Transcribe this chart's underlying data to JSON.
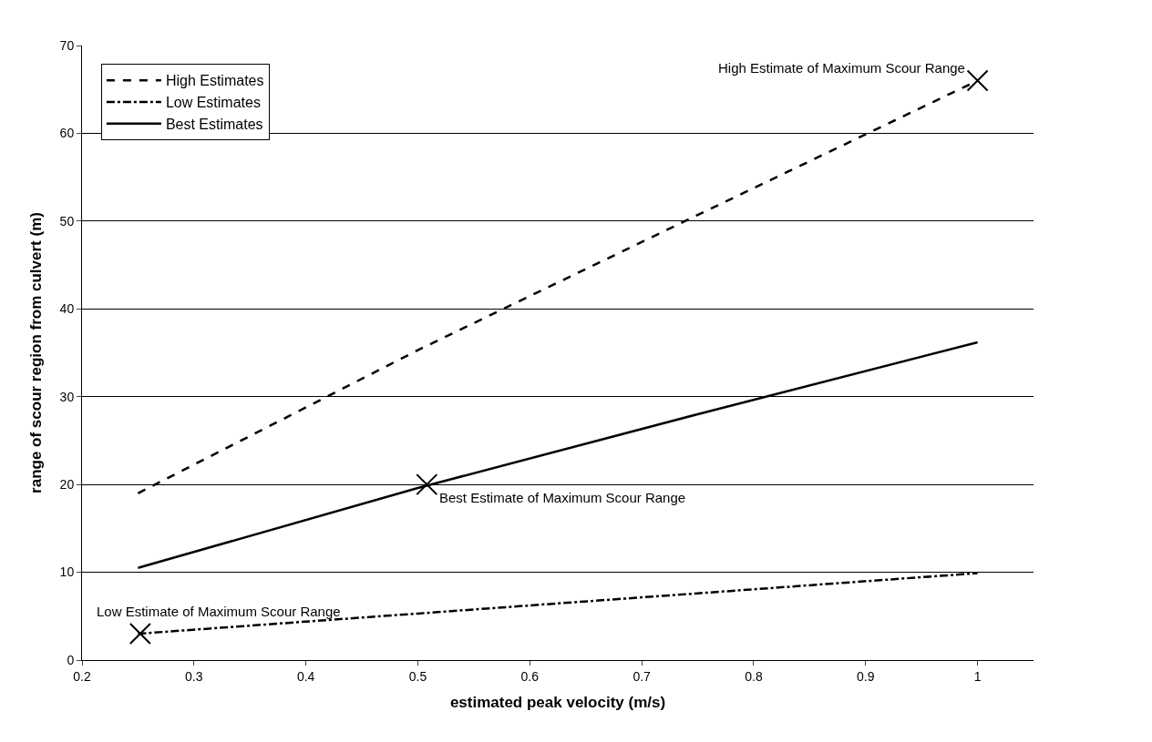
{
  "chart_data": {
    "type": "line",
    "xlabel": "estimated peak velocity (m/s)",
    "ylabel": "range of scour region from culvert (m)",
    "xlim": [
      0.2,
      1.05
    ],
    "xticks": [
      0.2,
      0.3,
      0.4,
      0.5,
      0.6,
      0.7,
      0.8,
      0.9,
      1
    ],
    "ylim": [
      0,
      70
    ],
    "yticks": [
      0,
      10,
      20,
      30,
      40,
      50,
      60,
      70
    ],
    "grid": "y",
    "legend": "top left",
    "marker": "none",
    "series": [
      {
        "name": "High Estimates",
        "color": "#000000",
        "line_style": "dashed",
        "x": [
          0.25,
          0.5,
          0.75,
          1
        ],
        "values": [
          19,
          35.3,
          50.7,
          66
        ]
      },
      {
        "name": "Low Estimates",
        "color": "#000000",
        "line_style": "dashdot",
        "x": [
          0.25,
          0.5,
          0.75,
          1
        ],
        "values": [
          3,
          5.3,
          7.6,
          9.9
        ]
      },
      {
        "name": "Best Estimates",
        "color": "#000000",
        "line_style": "solid",
        "x": [
          0.25,
          0.5,
          0.75,
          1
        ],
        "values": [
          10.5,
          19.6,
          28,
          36.2
        ]
      },
      {
        "type": "scatter",
        "marker": "cross",
        "color": "#000000",
        "x": [
          1,
          0.508,
          0.252
        ],
        "values": [
          66,
          20,
          3
        ]
      }
    ],
    "annotations": [
      {
        "text": "High Estimate of Maximum Scour Range",
        "x": 1,
        "y": 66
      },
      {
        "text": "Best Estimate of Maximum Scour Range",
        "x": 0.508,
        "y": 20
      },
      {
        "text": "Low Estimate of Maximum Scour Range",
        "x": 0.252,
        "y": 3
      }
    ]
  }
}
